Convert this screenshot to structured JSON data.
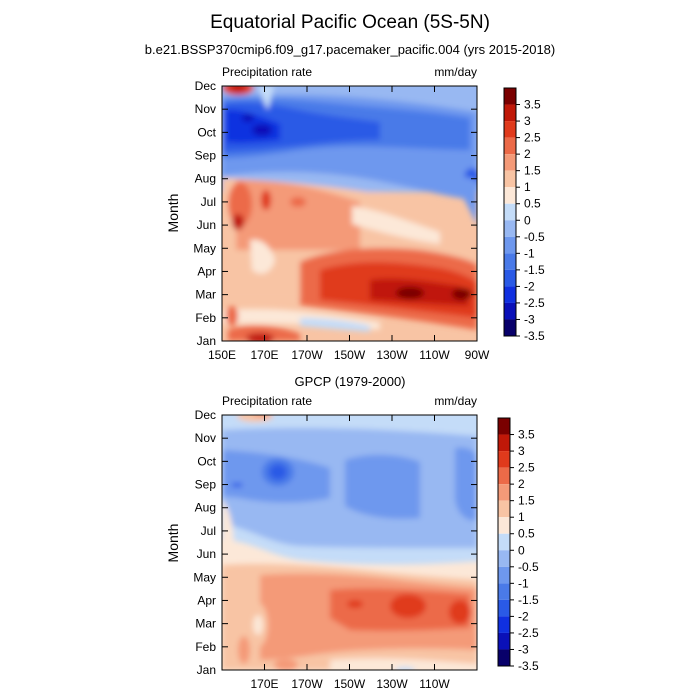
{
  "title": "Equatorial Pacific Ocean (5S-5N)",
  "subtitle": "b.e21.BSSP370cmip6.f09_g17.pacemaker_pacific.004 (yrs 2015-2018)",
  "chart_data": [
    {
      "type": "heatmap",
      "title": "",
      "left_label": "Precipitation rate",
      "right_label": "mm/day",
      "xlabel": "",
      "ylabel": "Month",
      "x_tick_labels": [
        "150E",
        "170E",
        "170W",
        "150W",
        "130W",
        "110W",
        "90W"
      ],
      "y_tick_labels": [
        "Jan",
        "Feb",
        "Mar",
        "Apr",
        "May",
        "Jun",
        "Jul",
        "Aug",
        "Sep",
        "Oct",
        "Nov",
        "Dec"
      ],
      "xlim_lon_east": [
        150,
        270
      ],
      "colorbar_labels": [
        "3.5",
        "3",
        "2.5",
        "2",
        "1.5",
        "1",
        "0.5",
        "0",
        "-0.5",
        "-1",
        "-1.5",
        "-2",
        "-2.5",
        "-3",
        "-3.5"
      ],
      "colormap": [
        "#08006a",
        "#0a10b8",
        "#1030e0",
        "#2a5ae6",
        "#4a7ae8",
        "#6e98ee",
        "#98b8f2",
        "#c4dcf8",
        "#fce8d8",
        "#f8c4a4",
        "#f49a78",
        "#ec6a48",
        "#e03a1c",
        "#c01808",
        "#7a0000"
      ]
    },
    {
      "type": "heatmap",
      "title": "GPCP (1979-2000)",
      "left_label": "Precipitation rate",
      "right_label": "mm/day",
      "xlabel": "",
      "ylabel": "Month",
      "x_tick_labels": [
        "170E",
        "170W",
        "150W",
        "130W",
        "110W"
      ],
      "y_tick_labels": [
        "Jan",
        "Feb",
        "Mar",
        "Apr",
        "May",
        "Jun",
        "Jul",
        "Aug",
        "Sep",
        "Oct",
        "Nov",
        "Dec"
      ],
      "xlim_lon_east": [
        150,
        270
      ],
      "colorbar_labels": [
        "3.5",
        "3",
        "2.5",
        "2",
        "1.5",
        "1",
        "0.5",
        "0",
        "-0.5",
        "-1",
        "-1.5",
        "-2",
        "-2.5",
        "-3",
        "-3.5"
      ],
      "colormap": [
        "#08006a",
        "#0a10b8",
        "#1030e0",
        "#2a5ae6",
        "#4a7ae8",
        "#6e98ee",
        "#98b8f2",
        "#c4dcf8",
        "#fce8d8",
        "#f8c4a4",
        "#f49a78",
        "#ec6a48",
        "#e03a1c",
        "#c01808",
        "#7a0000"
      ]
    }
  ]
}
